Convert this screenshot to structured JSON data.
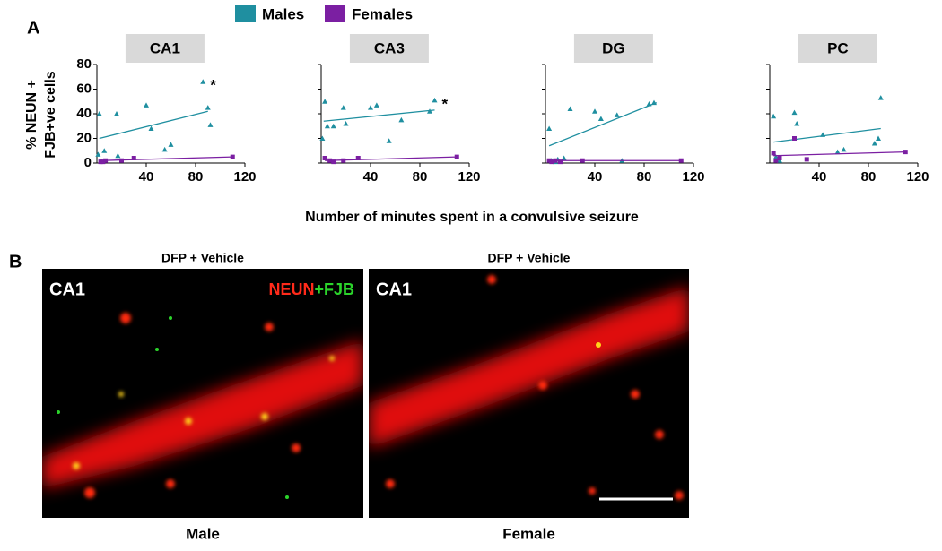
{
  "chart_data": [
    {
      "type": "scatter",
      "title": "CA1",
      "xlim": [
        0,
        120
      ],
      "xticks": [
        40,
        80,
        120
      ],
      "ylim": [
        0,
        80
      ],
      "yticks": [
        0,
        20,
        40,
        60,
        80
      ],
      "show_ytick_labels": true,
      "annotation": "*",
      "series": [
        {
          "name": "Males",
          "color": "#1f8fa0",
          "marker": "triangle",
          "x": [
            1,
            2,
            6,
            16,
            17,
            40,
            44,
            55,
            60,
            86,
            90,
            92
          ],
          "values": [
            7,
            40,
            10,
            40,
            6,
            47,
            28,
            11,
            15,
            66,
            45,
            31
          ],
          "fit_x": [
            2,
            90
          ],
          "fit_y": [
            20,
            42
          ]
        },
        {
          "name": "Females",
          "color": "#7b1fa2",
          "marker": "square",
          "x": [
            3,
            5,
            7,
            20,
            30,
            110
          ],
          "values": [
            1,
            1,
            2,
            2,
            4,
            5
          ],
          "fit_x": [
            3,
            110
          ],
          "fit_y": [
            2,
            5
          ]
        }
      ]
    },
    {
      "type": "scatter",
      "title": "CA3",
      "xlim": [
        0,
        120
      ],
      "xticks": [
        40,
        80,
        120
      ],
      "ylim": [
        0,
        80
      ],
      "yticks": [
        0,
        20,
        40,
        60,
        80
      ],
      "show_ytick_labels": false,
      "annotation": "*",
      "series": [
        {
          "name": "Males",
          "color": "#1f8fa0",
          "marker": "triangle",
          "x": [
            1,
            3,
            5,
            10,
            18,
            20,
            40,
            45,
            55,
            65,
            88,
            92
          ],
          "values": [
            20,
            50,
            30,
            30,
            45,
            32,
            45,
            47,
            18,
            35,
            42,
            51
          ],
          "fit_x": [
            2,
            92
          ],
          "fit_y": [
            34,
            43
          ]
        },
        {
          "name": "Females",
          "color": "#7b1fa2",
          "marker": "square",
          "x": [
            3,
            7,
            10,
            18,
            30,
            110
          ],
          "values": [
            4,
            2,
            1,
            2,
            4,
            5
          ],
          "fit_x": [
            3,
            110
          ],
          "fit_y": [
            2,
            5
          ]
        }
      ]
    },
    {
      "type": "scatter",
      "title": "DG",
      "xlim": [
        0,
        120
      ],
      "xticks": [
        40,
        80,
        120
      ],
      "ylim": [
        0,
        80
      ],
      "yticks": [
        0,
        20,
        40,
        60,
        80
      ],
      "show_ytick_labels": false,
      "series": [
        {
          "name": "Males",
          "color": "#1f8fa0",
          "marker": "triangle",
          "x": [
            3,
            5,
            8,
            10,
            15,
            20,
            40,
            45,
            58,
            62,
            84,
            88
          ],
          "values": [
            28,
            2,
            1,
            3,
            4,
            44,
            42,
            36,
            39,
            2,
            48,
            49
          ],
          "fit_x": [
            3,
            90
          ],
          "fit_y": [
            14,
            49
          ]
        },
        {
          "name": "Females",
          "color": "#7b1fa2",
          "marker": "square",
          "x": [
            3,
            5,
            8,
            12,
            30,
            110
          ],
          "values": [
            2,
            1,
            2,
            1,
            2,
            2
          ],
          "fit_x": [
            3,
            110
          ],
          "fit_y": [
            2,
            2
          ]
        }
      ]
    },
    {
      "type": "scatter",
      "title": "PC",
      "xlim": [
        0,
        120
      ],
      "xticks": [
        40,
        80,
        120
      ],
      "ylim": [
        0,
        80
      ],
      "yticks": [
        0,
        20,
        40,
        60,
        80
      ],
      "show_ytick_labels": false,
      "series": [
        {
          "name": "Males",
          "color": "#1f8fa0",
          "marker": "triangle",
          "x": [
            3,
            5,
            8,
            20,
            22,
            43,
            55,
            60,
            85,
            88,
            90
          ],
          "values": [
            38,
            5,
            2,
            41,
            32,
            23,
            9,
            11,
            16,
            20,
            53
          ],
          "fit_x": [
            3,
            90
          ],
          "fit_y": [
            17,
            28
          ]
        },
        {
          "name": "Females",
          "color": "#7b1fa2",
          "marker": "square",
          "x": [
            3,
            5,
            8,
            20,
            30,
            110
          ],
          "values": [
            8,
            2,
            4,
            20,
            3,
            9
          ],
          "fit_x": [
            3,
            110
          ],
          "fit_y": [
            6,
            9
          ]
        }
      ]
    }
  ],
  "figure": {
    "panel_a": "A",
    "panel_b": "B",
    "y_label": [
      "% NEUN +",
      "FJB+ve cells"
    ],
    "x_label": "Number of minutes spent in a convulsive seizure",
    "images": [
      {
        "header": "DFP + Vehicle",
        "region": "CA1",
        "stains": [
          {
            "text": "NEUN",
            "color": "#ff2a1a"
          },
          {
            "text": "+FJB",
            "color": "#2bd42b"
          }
        ],
        "caption": "Male"
      },
      {
        "header": "DFP + Vehicle",
        "region": "CA1",
        "caption": "Female"
      }
    ]
  }
}
